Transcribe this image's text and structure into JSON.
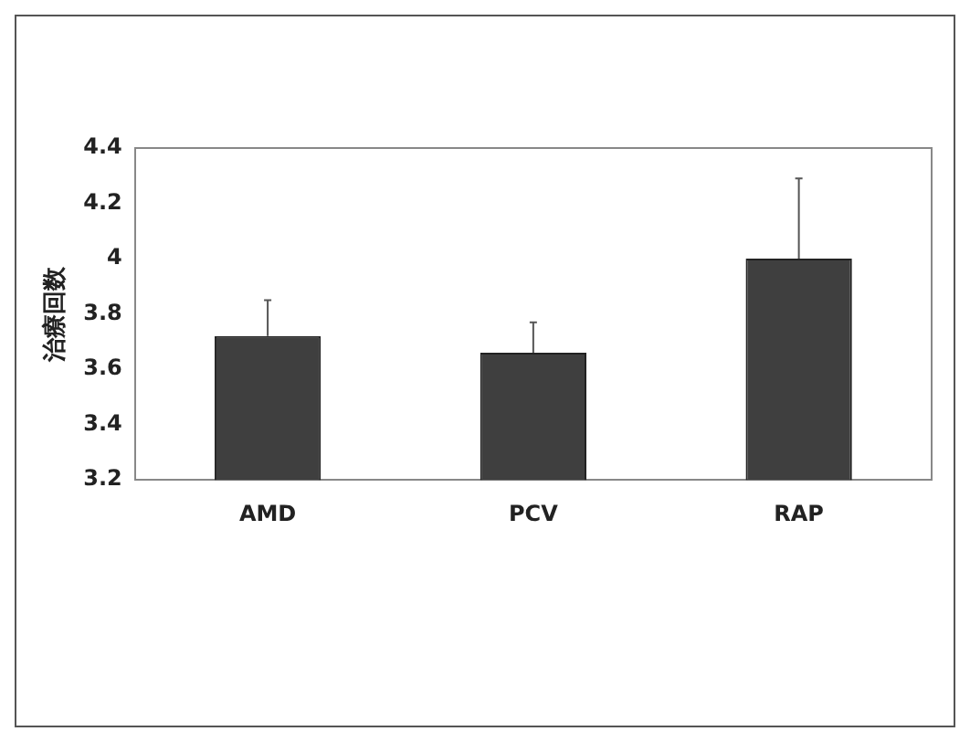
{
  "chart_data": {
    "type": "bar",
    "ylabel": "治療回数",
    "categories": [
      "AMD",
      "PCV",
      "RAP"
    ],
    "values": [
      3.72,
      3.66,
      4.0
    ],
    "errors": [
      [
        3.72,
        3.85
      ],
      [
        3.66,
        3.77
      ],
      [
        4.0,
        4.29
      ]
    ],
    "color": "#3f3f3f",
    "ylim": [
      3.2,
      4.4
    ],
    "yticks": [
      3.2,
      3.4,
      3.6,
      3.8,
      {
        "value": 4,
        "label": "4"
      },
      4.2,
      4.4
    ],
    "grid": false
  }
}
